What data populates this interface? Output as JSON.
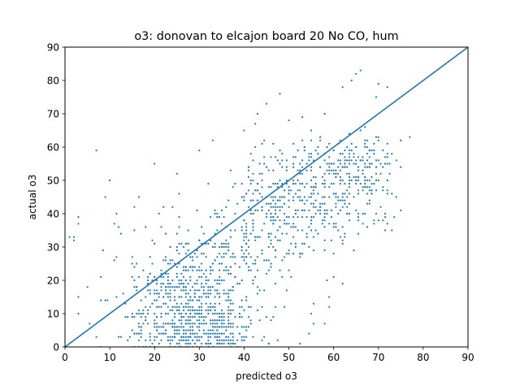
{
  "chart_data": {
    "type": "scatter",
    "title": "o3: donovan to elcajon board 20 No CO, hum",
    "xlabel": "predicted o3",
    "ylabel": "actual o3",
    "xlim": [
      0,
      90
    ],
    "ylim": [
      0,
      90
    ],
    "xticks": [
      "0",
      "10",
      "20",
      "30",
      "40",
      "50",
      "60",
      "70",
      "80",
      "90"
    ],
    "yticks": [
      "0",
      "10",
      "20",
      "30",
      "40",
      "50",
      "60",
      "70",
      "80",
      "90"
    ],
    "grid": false,
    "legend": "none",
    "series": [
      {
        "type": "scatter",
        "color": "#1f77b4",
        "point_count": 1500,
        "summary": "dense cloud; main mass predicted 15-55 vs actual 0-55, upper tail to about predicted 77 / actual 83",
        "points": [
          [
            8,
            0
          ],
          [
            12,
            3
          ],
          [
            15,
            5
          ],
          [
            18,
            2
          ],
          [
            20,
            8
          ],
          [
            22,
            4
          ],
          [
            25,
            6
          ],
          [
            27,
            10
          ],
          [
            28,
            3
          ],
          [
            30,
            12
          ],
          [
            31,
            5
          ],
          [
            32,
            15
          ],
          [
            33,
            8
          ],
          [
            34,
            20
          ],
          [
            35,
            25
          ],
          [
            36,
            30
          ],
          [
            38,
            35
          ],
          [
            40,
            38
          ],
          [
            42,
            40
          ],
          [
            44,
            42
          ],
          [
            45,
            45
          ],
          [
            46,
            40
          ],
          [
            48,
            44
          ],
          [
            50,
            47
          ],
          [
            52,
            50
          ],
          [
            55,
            48
          ],
          [
            58,
            52
          ],
          [
            60,
            55
          ],
          [
            62,
            58
          ],
          [
            65,
            60
          ],
          [
            67,
            62
          ],
          [
            70,
            63
          ],
          [
            72,
            58
          ],
          [
            75,
            62
          ],
          [
            77,
            63
          ],
          [
            66,
            83
          ],
          [
            65,
            82
          ],
          [
            64,
            80
          ],
          [
            62,
            78
          ],
          [
            70,
            79
          ],
          [
            72,
            78
          ],
          [
            5,
            18
          ],
          [
            3,
            15
          ],
          [
            2,
            32
          ],
          [
            1,
            33
          ],
          [
            7,
            59
          ],
          [
            9,
            45
          ],
          [
            10,
            50
          ],
          [
            20,
            55
          ],
          [
            25,
            52
          ],
          [
            30,
            59
          ],
          [
            33,
            62
          ],
          [
            37,
            53
          ],
          [
            40,
            65
          ],
          [
            43,
            70
          ],
          [
            45,
            73
          ],
          [
            48,
            76
          ],
          [
            50,
            68
          ],
          [
            55,
            65
          ],
          [
            58,
            70
          ]
        ]
      },
      {
        "type": "line",
        "name": "",
        "color": "#1f77b4",
        "x": [
          0,
          90
        ],
        "y": [
          0,
          90
        ]
      }
    ]
  }
}
